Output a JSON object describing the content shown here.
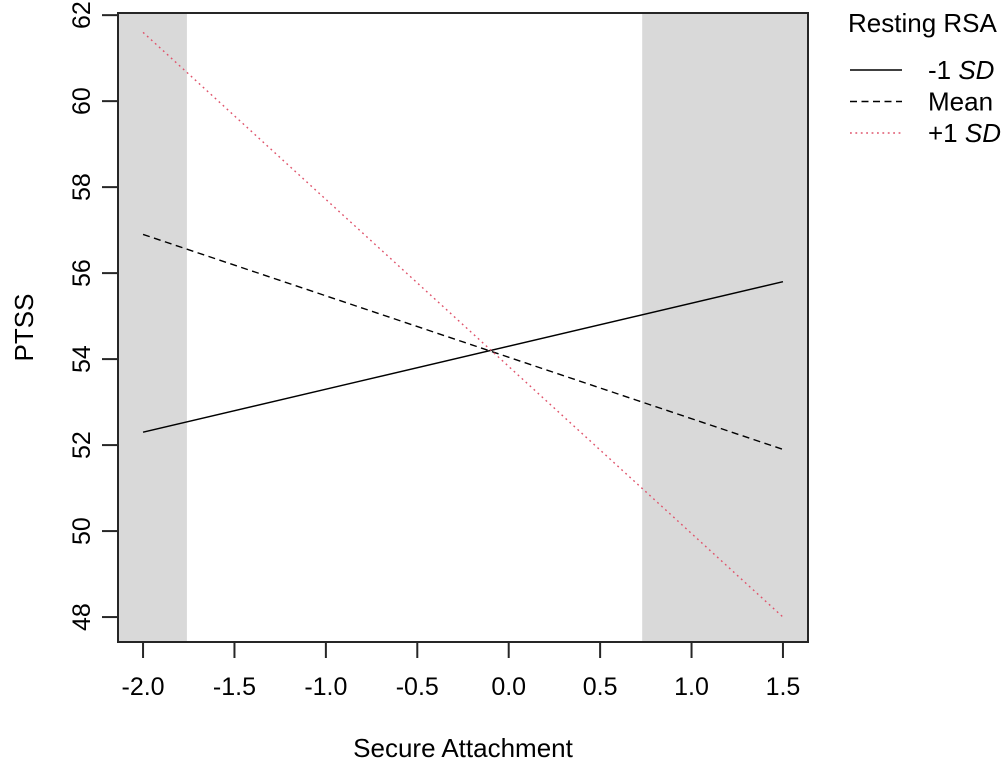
{
  "chart_data": {
    "type": "line",
    "title": "",
    "xlabel": "Secure Attachment",
    "ylabel": "PTSS",
    "xlim": [
      -2.137,
      1.637
    ],
    "ylim": [
      47.42,
      62.05
    ],
    "x_ticks": [
      -2.0,
      -1.5,
      -1.0,
      -0.5,
      0.0,
      0.5,
      1.0,
      1.5
    ],
    "x_tick_labels": [
      "-2.0",
      "-1.5",
      "-1.0",
      "-0.5",
      "0.0",
      "0.5",
      "1.0",
      "1.5"
    ],
    "y_ticks": [
      48,
      50,
      52,
      54,
      56,
      58,
      60,
      62
    ],
    "y_tick_labels": [
      "48",
      "50",
      "52",
      "54",
      "56",
      "58",
      "60",
      "62"
    ],
    "grid": false,
    "frame_color": "#262626",
    "background_color": "#ffffff",
    "shaded_regions": [
      {
        "name": "left-region-of-significance",
        "x_start": -2.137,
        "x_end": -1.76,
        "color": "#D9D9D9"
      },
      {
        "name": "right-region-of-significance",
        "x_start": 0.73,
        "x_end": 1.637,
        "color": "#D9D9D9"
      }
    ],
    "series": [
      {
        "name": "-1 SD",
        "label_prefix": "-1 ",
        "label_italic": "SD",
        "style": "solid",
        "color": "#000000",
        "x": [
          -2.0,
          1.5
        ],
        "y": [
          52.3,
          55.8
        ]
      },
      {
        "name": "Mean",
        "label_prefix": "Mean",
        "label_italic": "",
        "style": "dashed",
        "color": "#000000",
        "x": [
          -2.0,
          1.5
        ],
        "y": [
          56.9,
          51.9
        ]
      },
      {
        "name": "+1 SD",
        "label_prefix": "+1 ",
        "label_italic": "SD",
        "style": "dotted",
        "color": "#DF536B",
        "x": [
          -2.0,
          1.5
        ],
        "y": [
          61.6,
          48.0
        ]
      }
    ],
    "legend": {
      "title": "Resting RSA",
      "position": "right-outside"
    }
  }
}
